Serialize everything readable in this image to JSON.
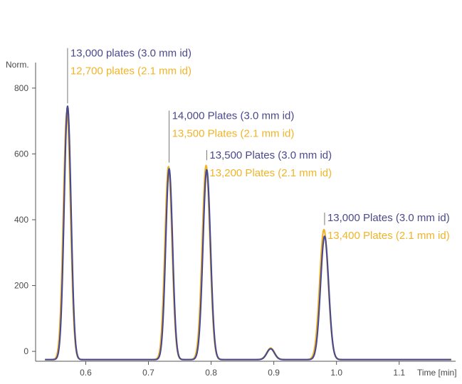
{
  "chart_data": {
    "type": "line",
    "ylabel": "Norm.",
    "xlabel": "Time [min]",
    "xlim": [
      0.52,
      1.19
    ],
    "ylim": [
      -30,
      830
    ],
    "x_ticks": [
      0.6,
      0.7,
      0.8,
      0.9,
      1.0,
      1.1
    ],
    "x_tick_labels": [
      "0.6",
      "0.7",
      "0.8",
      "0.9",
      "1.0",
      "1.1"
    ],
    "y_ticks": [
      0,
      200,
      400,
      600,
      800
    ],
    "y_tick_labels": [
      "0",
      "200",
      "400",
      "600",
      "800"
    ],
    "series": [
      {
        "id": "s30",
        "color": "#4a4a8c",
        "baseline": -25,
        "peaks": [
          {
            "time": 0.571,
            "height": 745,
            "width": 0.0055
          },
          {
            "time": 0.733,
            "height": 555,
            "width": 0.0055
          },
          {
            "time": 0.793,
            "height": 552,
            "width": 0.006
          },
          {
            "time": 0.895,
            "height": 8,
            "width": 0.006
          },
          {
            "time": 0.981,
            "height": 350,
            "width": 0.0065
          }
        ]
      },
      {
        "id": "s21",
        "color": "#f0b429",
        "baseline": -25,
        "peaks": [
          {
            "time": 0.57,
            "height": 728,
            "width": 0.0057
          },
          {
            "time": 0.732,
            "height": 562,
            "width": 0.0057
          },
          {
            "time": 0.792,
            "height": 565,
            "width": 0.0062
          },
          {
            "time": 0.895,
            "height": 10,
            "width": 0.0062
          },
          {
            "time": 0.98,
            "height": 370,
            "width": 0.0068
          }
        ]
      }
    ],
    "annotations": [
      {
        "time": 0.571,
        "peak_value": 745,
        "label_value": 900,
        "color_a": "#4a4a8c",
        "color_b": "#f0b429",
        "line1": "13,000 plates (3.0 mm id)",
        "line2": "12,700 plates (2.1 mm id)"
      },
      {
        "time": 0.733,
        "peak_value": 565,
        "label_value": 710,
        "color_a": "#4a4a8c",
        "color_b": "#f0b429",
        "line1": "14,000 Plates (3.0 mm id)",
        "line2": "13,500 Plates (2.1 mm id)"
      },
      {
        "time": 0.793,
        "peak_value": 572,
        "label_value": 590,
        "color_a": "#4a4a8c",
        "color_b": "#f0b429",
        "line1": "13,500 Plates (3.0 mm id)",
        "line2": "13,200 Plates (2.1 mm id)"
      },
      {
        "time": 0.981,
        "peak_value": 375,
        "label_value": 400,
        "color_a": "#4a4a8c",
        "color_b": "#f0b429",
        "line1": "13,000 Plates (3.0 mm id)",
        "line2": "13,400 Plates (2.1 mm id)"
      }
    ]
  }
}
